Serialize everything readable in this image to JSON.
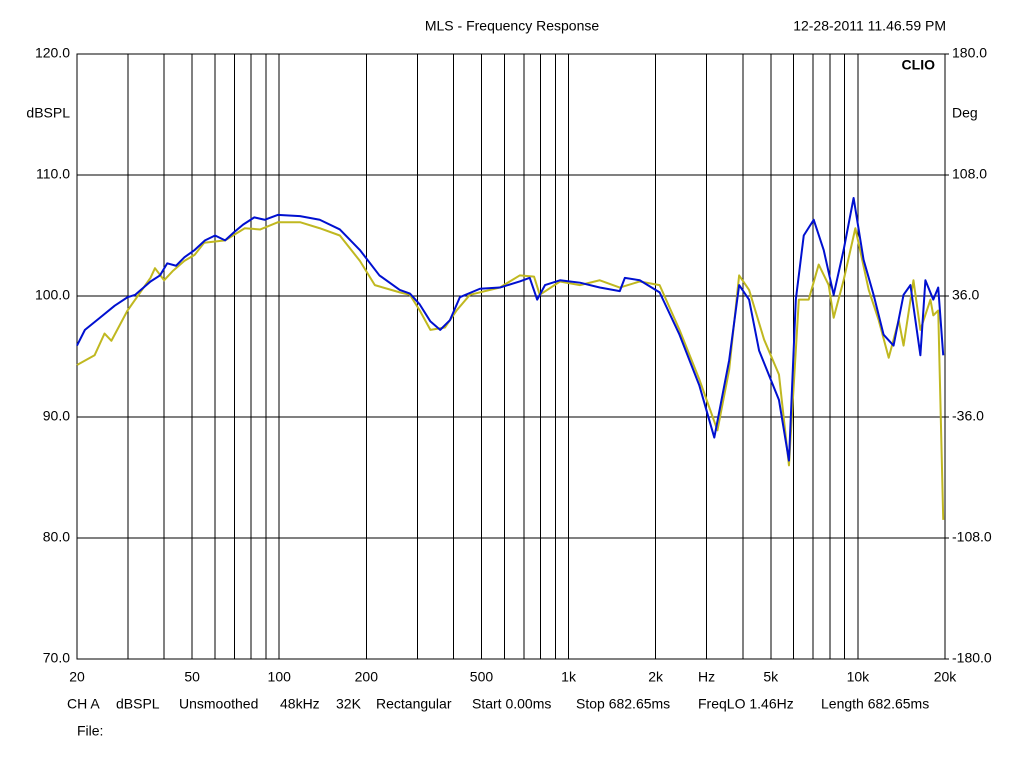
{
  "chart_data": {
    "type": "line",
    "title": "MLS - Frequency Response",
    "timestamp": "12-28-2011 11.46.59 PM",
    "brand": "CLIO",
    "ylabel": "dBSPL",
    "y2label": "Deg",
    "log_x": true,
    "grid": true,
    "xlim": [
      20,
      20000
    ],
    "xticks": [
      20,
      50,
      100,
      200,
      500,
      {
        "value": 1000,
        "label": "1k"
      },
      {
        "value": 2000,
        "label": "2k"
      },
      {
        "value": 3000,
        "label": "Hz"
      },
      {
        "value": 5000,
        "label": "5k"
      },
      {
        "value": 10000,
        "label": "10k"
      },
      {
        "value": 20000,
        "label": "20k"
      }
    ],
    "xgrid": [
      30,
      40,
      60,
      70,
      80,
      90,
      300,
      400,
      600,
      700,
      800,
      900,
      4000,
      6000,
      7000,
      8000,
      9000
    ],
    "ylim": [
      70,
      120
    ],
    "yticks": [
      {
        "value": 70,
        "label": "70.0"
      },
      {
        "value": 80,
        "label": "80.0"
      },
      {
        "value": 90,
        "label": "90.0"
      },
      {
        "value": 100,
        "label": "100.0"
      },
      {
        "value": 110,
        "label": "110.0"
      },
      {
        "value": 120,
        "label": "120.0"
      }
    ],
    "y2lim": [
      -180,
      180
    ],
    "y2ticks": [
      {
        "value": -180,
        "label": "-180.0"
      },
      {
        "value": -108,
        "label": "-108.0"
      },
      {
        "value": -36,
        "label": "-36.0"
      },
      {
        "value": 36,
        "label": "36.0"
      },
      {
        "value": 108,
        "label": "108.0"
      },
      {
        "value": 180,
        "label": "180.0"
      }
    ],
    "series": [
      {
        "color": "#c0b820",
        "x": [
          20,
          23,
          24.9,
          26.3,
          29.9,
          35.9,
          37.2,
          40,
          43,
          47,
          51,
          55,
          65,
          76,
          86,
          99,
          118,
          138,
          162,
          190,
          214,
          261,
          283,
          306,
          333,
          374,
          410,
          456,
          579,
          678,
          760,
          795,
          934,
          1095,
          1282,
          1503,
          1762,
          2064,
          2418,
          2832,
          3270,
          3590,
          3886,
          4207,
          4740,
          5336,
          5777,
          6250,
          6760,
          7320,
          7925,
          8246,
          8925,
          9800,
          10900,
          11800,
          12780,
          13840,
          14380,
          15560,
          16440,
          17810,
          18220,
          18950,
          19720
        ],
        "values": [
          94.3,
          95.1,
          96.9,
          96.3,
          98.8,
          101.5,
          102.3,
          101.3,
          102.1,
          102.9,
          103.4,
          104.4,
          104.6,
          105.6,
          105.5,
          106.1,
          106.1,
          105.6,
          105.0,
          102.9,
          100.9,
          100.3,
          100.1,
          98.8,
          97.2,
          97.4,
          98.8,
          100.1,
          100.7,
          101.7,
          101.6,
          100.1,
          101.2,
          100.9,
          101.3,
          100.7,
          101.2,
          100.9,
          97.2,
          93.1,
          88.9,
          93.9,
          101.7,
          100.5,
          96.4,
          93.5,
          86.0,
          99.7,
          99.7,
          102.6,
          100.9,
          98.2,
          101.3,
          105.6,
          100.5,
          98.0,
          94.9,
          98.0,
          95.9,
          101.3,
          97.2,
          99.7,
          98.4,
          98.8,
          81.5
        ]
      },
      {
        "color": "#0010d0",
        "x": [
          20,
          21.3,
          24,
          27,
          29.9,
          31.8,
          35.9,
          38.7,
          41,
          44,
          47,
          51,
          55.4,
          60,
          65,
          70,
          75,
          82,
          89,
          98.8,
          118,
          138,
          162,
          190,
          222,
          261,
          283,
          306,
          333,
          360,
          389,
          421,
          494,
          579,
          678,
          734,
          779,
          829,
          934,
          1095,
          1282,
          1503,
          1565,
          1762,
          2064,
          2418,
          2832,
          3189,
          3590,
          3886,
          4207,
          4554,
          5336,
          5777,
          6101,
          6499,
          7036,
          7617,
          8246,
          8925,
          9664,
          10460,
          11330,
          12270,
          13280,
          14380,
          15190,
          16440,
          17110,
          18220,
          18950,
          19720
        ],
        "values": [
          95.9,
          97.2,
          98.2,
          99.2,
          99.9,
          100.1,
          101.2,
          101.7,
          102.7,
          102.5,
          103.2,
          103.8,
          104.6,
          105.0,
          104.6,
          105.3,
          105.9,
          106.5,
          106.3,
          106.7,
          106.6,
          106.3,
          105.5,
          103.8,
          101.7,
          100.5,
          100.2,
          99.3,
          97.9,
          97.2,
          98.0,
          99.9,
          100.6,
          100.7,
          101.2,
          101.5,
          99.7,
          100.9,
          101.3,
          101.1,
          100.7,
          100.4,
          101.5,
          101.3,
          100.3,
          96.8,
          92.6,
          88.3,
          94.7,
          100.9,
          99.7,
          95.5,
          91.4,
          86.4,
          99.7,
          105.0,
          106.3,
          103.8,
          100.1,
          103.8,
          108.1,
          103.0,
          100.1,
          96.8,
          95.9,
          100.1,
          100.9,
          95.1,
          101.3,
          99.7,
          100.7,
          95.1
        ]
      }
    ],
    "footer": [
      "CH A",
      "dBSPL",
      "Unsmoothed",
      "48kHz",
      "32K",
      "Rectangular",
      "Start 0.00ms",
      "Stop 682.65ms",
      "FreqLO 1.46Hz",
      "Length 682.65ms"
    ],
    "file_label": "File:"
  }
}
